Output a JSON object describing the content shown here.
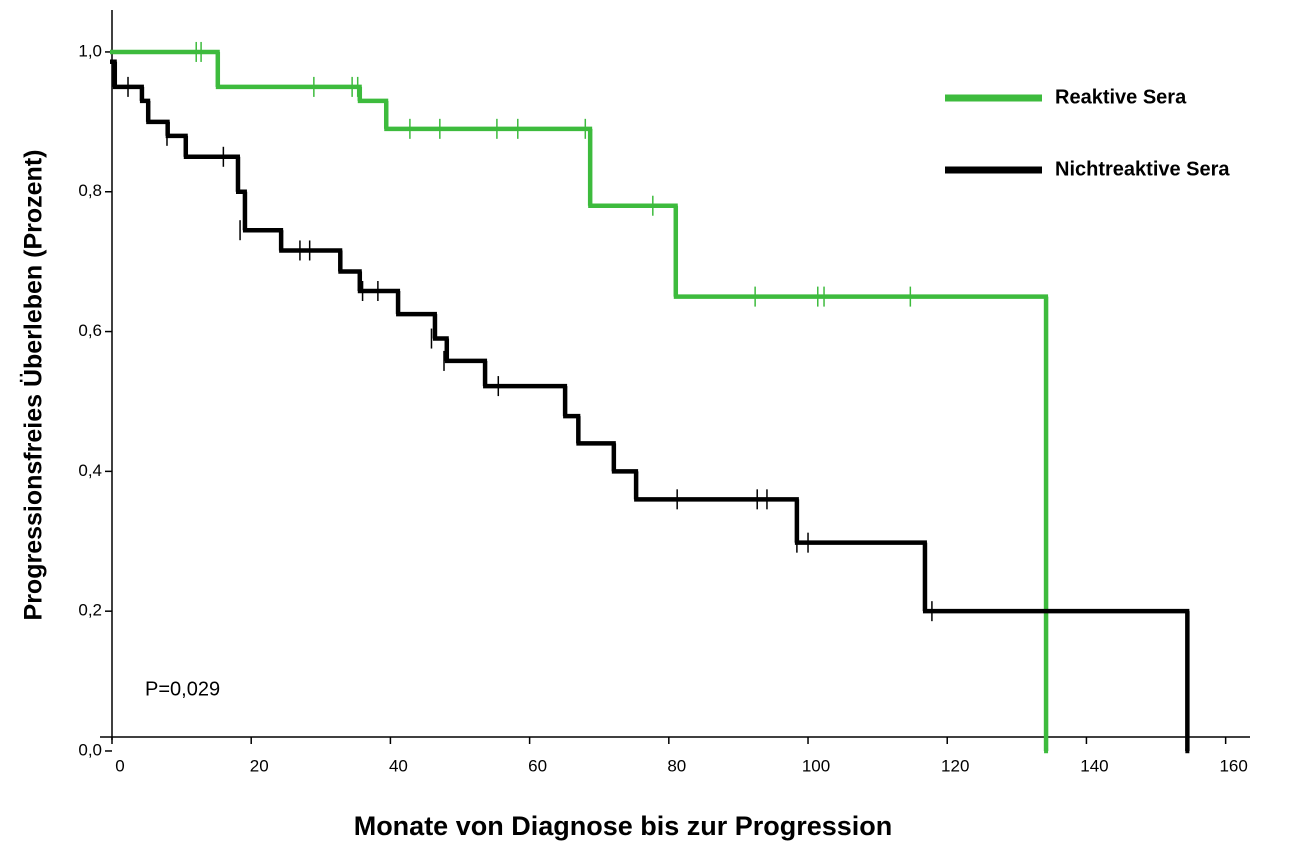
{
  "chart_data": {
    "type": "step",
    "xlabel": "Monate von Diagnose bis zur Progression",
    "ylabel": "Progressionsfreies Überleben (Prozent)",
    "annotation": "P=0,029",
    "legend": "upper right",
    "xlim": [
      0,
      163.5
    ],
    "xticks": [
      0,
      20,
      40,
      60,
      80,
      100,
      120,
      140,
      160
    ],
    "ylim": [
      0.02,
      1.06
    ],
    "yticks": [
      {
        "value": 0,
        "label": "0,0"
      },
      {
        "value": 0.2,
        "label": "0,2"
      },
      {
        "value": 0.4,
        "label": "0,4"
      },
      {
        "value": 0.6,
        "label": "0,6"
      },
      {
        "value": 0.8,
        "label": "0,8"
      },
      {
        "value": 1,
        "label": "1,0"
      }
    ],
    "series": [
      {
        "name": "Reaktive Sera",
        "color": "#3dbb3d",
        "x": [
          0,
          15.2,
          35.6,
          39.4,
          68.7,
          81,
          134.2
        ],
        "values": [
          1,
          0.95,
          0.93,
          0.89,
          0.78,
          0.65,
          0
        ],
        "censored": {
          "x": [
            12.1,
            12.8,
            29,
            34.5,
            35.3,
            42.8,
            47.1,
            55.3,
            58.3,
            68,
            77.7,
            92.4,
            101.4,
            102.3,
            114.7
          ],
          "values": [
            1,
            1,
            0.95,
            0.95,
            0.95,
            0.89,
            0.89,
            0.89,
            0.89,
            0.89,
            0.78,
            0.65,
            0.65,
            0.65,
            0.65
          ]
        }
      },
      {
        "name": "Nichtreaktive Sera",
        "color": "#000000",
        "x": [
          0,
          0.4,
          4.3,
          5.2,
          8,
          10.6,
          18.1,
          19.1,
          24.3,
          32.8,
          35.6,
          41.1,
          46.4,
          48.1,
          53.6,
          65.1,
          67,
          72.1,
          75.3,
          98.4,
          116.8,
          154.5
        ],
        "values": [
          0.986,
          0.95,
          0.93,
          0.9,
          0.88,
          0.85,
          0.8,
          0.745,
          0.716,
          0.686,
          0.658,
          0.625,
          0.59,
          0.558,
          0.522,
          0.479,
          0.44,
          0.4,
          0.36,
          0.298,
          0.2,
          0
        ],
        "censored": {
          "x": [
            2.3,
            7.9,
            16,
            18.4,
            27,
            28.4,
            36,
            38.2,
            45.9,
            47.7,
            55.5,
            81.2,
            92.7,
            94.1,
            98.4,
            100,
            117.8
          ],
          "values": [
            0.95,
            0.88,
            0.85,
            0.745,
            0.716,
            0.716,
            0.658,
            0.658,
            0.59,
            0.558,
            0.522,
            0.36,
            0.36,
            0.36,
            0.298,
            0.298,
            0.2
          ]
        }
      }
    ]
  }
}
